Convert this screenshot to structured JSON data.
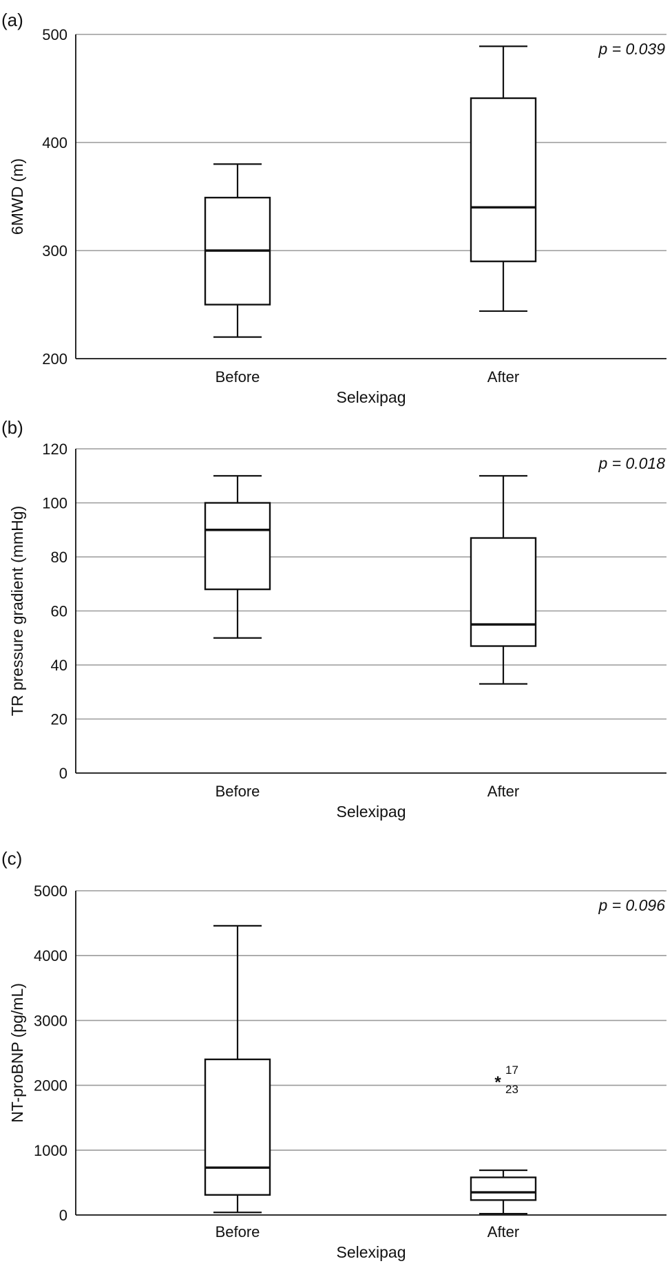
{
  "chart_data": [
    {
      "type": "box",
      "panel_label": "(a)",
      "title": "",
      "xlabel": "Selexipag",
      "ylabel": "6MWD (m)",
      "ylim": [
        200,
        500
      ],
      "yticks": [
        200,
        300,
        400,
        500
      ],
      "grid": true,
      "annotation": "p = 0.039",
      "categories": [
        "Before",
        "After"
      ],
      "boxes": [
        {
          "name": "Before",
          "min": 220,
          "q1": 250,
          "median": 300,
          "q3": 349,
          "max": 380,
          "outliers": []
        },
        {
          "name": "After",
          "min": 244,
          "q1": 290,
          "median": 340,
          "q3": 441,
          "max": 489,
          "outliers": []
        }
      ]
    },
    {
      "type": "box",
      "panel_label": "(b)",
      "title": "",
      "xlabel": "Selexipag",
      "ylabel": "TR pressure gradient (mmHg)",
      "ylim": [
        0,
        120
      ],
      "yticks": [
        0,
        20,
        40,
        60,
        80,
        100,
        120
      ],
      "grid": true,
      "annotation": "p = 0.018",
      "categories": [
        "Before",
        "After"
      ],
      "boxes": [
        {
          "name": "Before",
          "min": 50,
          "q1": 68,
          "median": 90,
          "q3": 100,
          "max": 110,
          "outliers": []
        },
        {
          "name": "After",
          "min": 33,
          "q1": 47,
          "median": 55,
          "q3": 87,
          "max": 110,
          "outliers": []
        }
      ]
    },
    {
      "type": "box",
      "panel_label": "(c)",
      "title": "",
      "xlabel": "Selexipag",
      "ylabel": "NT-proBNP (pg/mL)",
      "ylim": [
        0,
        5000
      ],
      "yticks": [
        0,
        1000,
        2000,
        3000,
        4000,
        5000
      ],
      "grid": true,
      "annotation": "p = 0.096",
      "categories": [
        "Before",
        "After"
      ],
      "boxes": [
        {
          "name": "Before",
          "min": 40,
          "q1": 310,
          "median": 730,
          "q3": 2400,
          "max": 4460,
          "outliers": []
        },
        {
          "name": "After",
          "min": 20,
          "q1": 230,
          "median": 350,
          "q3": 580,
          "max": 690,
          "outliers": [
            {
              "value": 2070,
              "marker": "*",
              "ids": [
                "17",
                "23"
              ]
            }
          ]
        }
      ]
    }
  ]
}
